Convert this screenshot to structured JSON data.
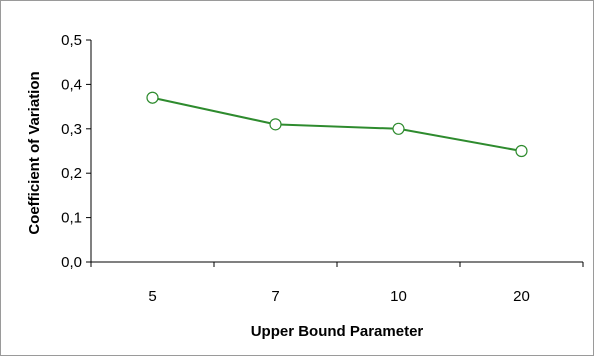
{
  "chart_data": {
    "type": "line",
    "title": "",
    "xlabel": "Upper Bound Parameter",
    "ylabel": "Coefficient of Variation",
    "categories": [
      "5",
      "7",
      "10",
      "20"
    ],
    "series": [
      {
        "values": [
          0.37,
          0.31,
          0.3,
          0.25
        ],
        "color": "#2e8b2e",
        "marker": "circle-open"
      }
    ],
    "ylim": [
      0,
      0.5
    ],
    "yticks": [
      "0,0",
      "0,1",
      "0,2",
      "0,3",
      "0,4",
      "0,5"
    ],
    "grid": false,
    "legend": "none"
  }
}
